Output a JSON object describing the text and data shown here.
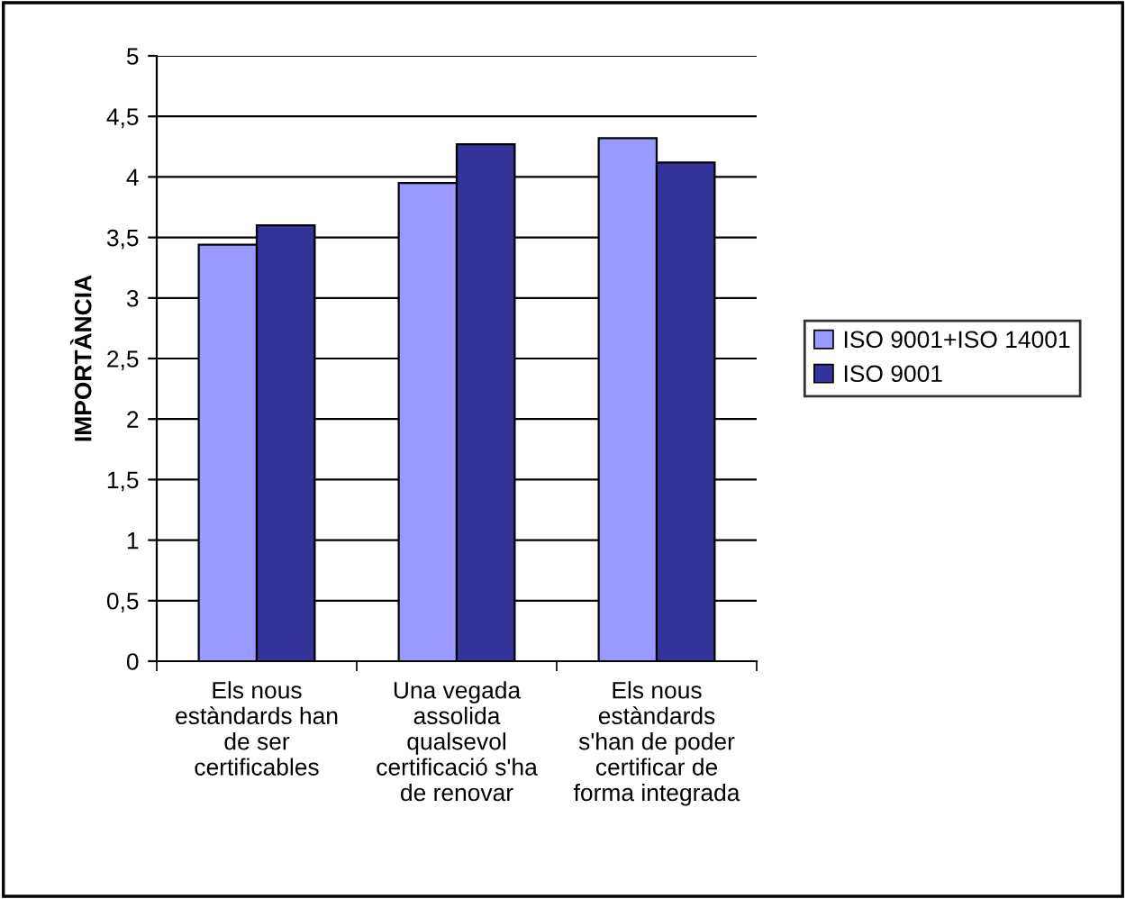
{
  "chart_data": {
    "type": "bar",
    "ylabel": "IMPORTÀNCIA",
    "categories": [
      "Els nous\nestàndards han\nde ser\ncertificables",
      "Una vegada\nassolida\nqualsevol\ncertificació s'ha\nde renovar",
      "Els nous\nestàndards\ns'han de poder\ncertificar de\nforma integrada"
    ],
    "series": [
      {
        "name": "ISO 9001+ISO 14001",
        "color": "#9999ff",
        "values": [
          3.44,
          3.95,
          4.32
        ]
      },
      {
        "name": "ISO 9001",
        "color": "#333399",
        "values": [
          3.6,
          4.27,
          4.12
        ]
      }
    ],
    "ylim": [
      0,
      5
    ],
    "yticks": [
      0,
      {
        "value": 0.5,
        "label": "0,5"
      },
      1,
      {
        "value": 1.5,
        "label": "1,5"
      },
      2,
      {
        "value": 2.5,
        "label": "2,5"
      },
      3,
      {
        "value": 3.5,
        "label": "3,5"
      },
      4,
      {
        "value": 4.5,
        "label": "4,5"
      },
      5
    ],
    "grid": "y",
    "legend": "right"
  }
}
